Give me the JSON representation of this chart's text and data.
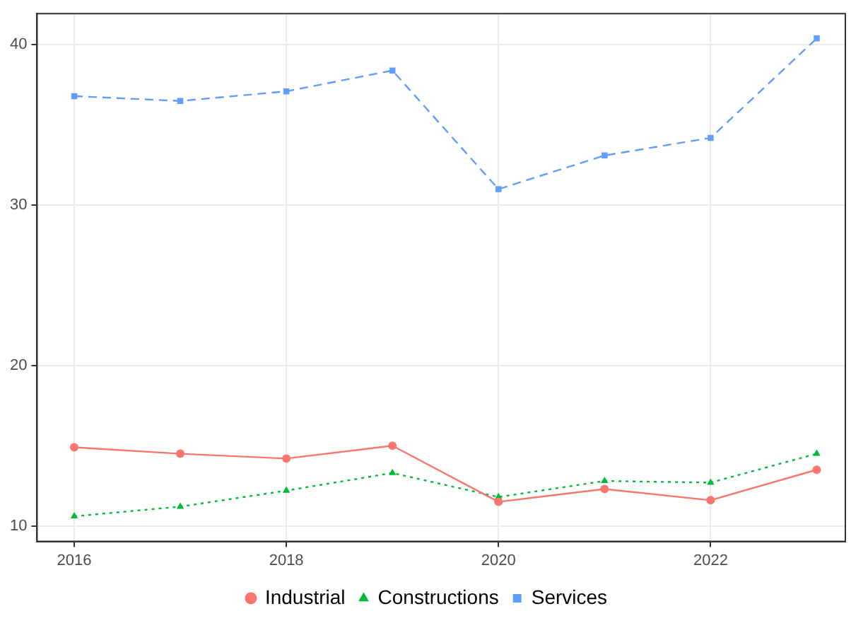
{
  "chart_data": {
    "type": "line",
    "x": [
      2016,
      2017,
      2018,
      2019,
      2020,
      2021,
      2022,
      2023
    ],
    "series": [
      {
        "name": "Industrial",
        "color": "#f8766d",
        "marker": "circle",
        "line_style": "solid",
        "values": [
          14.9,
          14.5,
          14.2,
          15.0,
          11.5,
          12.3,
          11.6,
          13.5
        ]
      },
      {
        "name": "Constructions",
        "color": "#00ba38",
        "marker": "triangle",
        "line_style": "dotted",
        "values": [
          10.6,
          11.2,
          12.2,
          13.3,
          11.8,
          12.8,
          12.7,
          14.5
        ]
      },
      {
        "name": "Services",
        "color": "#619cff",
        "marker": "square",
        "line_style": "dashed",
        "values": [
          36.8,
          36.5,
          37.1,
          38.4,
          31.0,
          33.1,
          34.2,
          40.4
        ]
      }
    ],
    "xlim": [
      2015.65,
      2023.27
    ],
    "xticks": [
      2016,
      2018,
      2020,
      2022
    ],
    "ylim": [
      9.03,
      41.95
    ],
    "yticks": [
      10,
      20,
      30,
      40
    ],
    "grid": true,
    "legend": "bottom"
  }
}
